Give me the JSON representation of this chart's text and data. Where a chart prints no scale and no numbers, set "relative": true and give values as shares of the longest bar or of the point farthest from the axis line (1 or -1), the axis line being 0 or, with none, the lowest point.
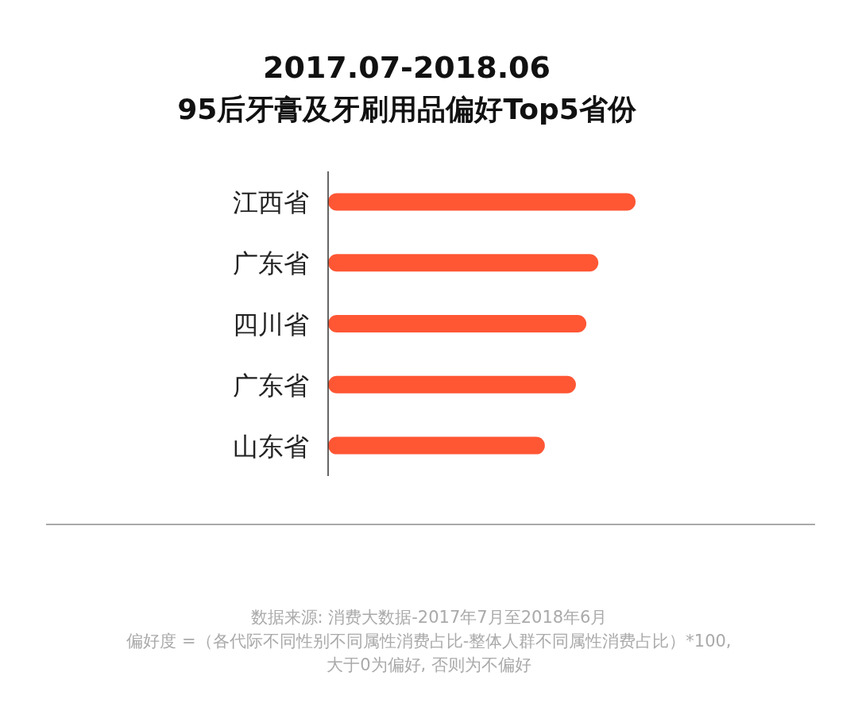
{
  "chart_data": {
    "type": "bar",
    "orientation": "horizontal",
    "relative": true,
    "title": "2017.07-2018.06",
    "subtitle": "95后牙膏及牙刷用品偏好Top5省份",
    "categories": [
      "江西省",
      "广东省",
      "四川省",
      "广东省",
      "山东省"
    ],
    "values": [
      1,
      0.879,
      0.84,
      0.806,
      0.705
    ],
    "color": "#ff5634",
    "annotations": [
      "数据来源: 消费大数据-2017年7月至2018年6月",
      "偏好度 =（各代际不同性别不同属性消费占比-整体人群不同属性消费占比）*100,",
      "大于0为偏好, 否则为不偏好"
    ]
  }
}
